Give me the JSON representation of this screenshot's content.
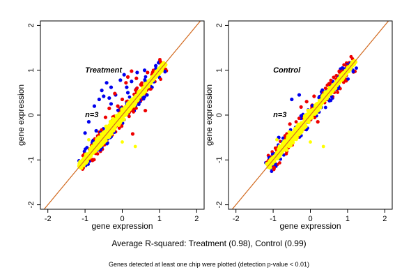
{
  "chart_data": [
    {
      "type": "scatter",
      "panel_label": "Treatment",
      "annotation": "n=3",
      "xlabel": "gene expression",
      "ylabel": "gene expression",
      "xlim": [
        -2.2,
        2.2
      ],
      "ylim": [
        -2.1,
        2.1
      ],
      "x_ticks": [
        -2,
        -1,
        0,
        1,
        2
      ],
      "y_ticks": [
        -2,
        -1,
        0,
        1,
        2
      ],
      "reference_line": "y = x",
      "colors": {
        "blue": "#0000ee",
        "red": "#ee0000",
        "yellow": "#ffff00",
        "line": "#d2691e"
      },
      "series": [
        {
          "color": "#0000ee",
          "points": [
            [
              -0.55,
              0.55
            ],
            [
              -0.42,
              0.72
            ],
            [
              -0.3,
              0.62
            ],
            [
              -0.18,
              0.45
            ],
            [
              -0.05,
              0.78
            ],
            [
              0.05,
              0.9
            ],
            [
              0.12,
              0.62
            ],
            [
              -0.5,
              0.42
            ],
            [
              -0.62,
              0.35
            ],
            [
              -0.75,
              0.2
            ],
            [
              -0.9,
              -0.15
            ],
            [
              -1.0,
              -0.4
            ],
            [
              -0.7,
              -0.35
            ],
            [
              -0.3,
              0.25
            ],
            [
              0.25,
              0.75
            ],
            [
              0.4,
              0.95
            ],
            [
              0.6,
              1.0
            ],
            [
              0.9,
              1.1
            ],
            [
              -0.35,
              0.38
            ],
            [
              0.15,
              0.5
            ]
          ]
        },
        {
          "color": "#ee0000",
          "points": [
            [
              -0.35,
              0.15
            ],
            [
              -0.2,
              0.48
            ],
            [
              0.15,
              0.85
            ],
            [
              0.25,
              0.98
            ],
            [
              0.38,
              0.82
            ],
            [
              0.5,
              0.68
            ],
            [
              0.68,
              0.95
            ],
            [
              -0.12,
              0.2
            ],
            [
              0.28,
              -0.42
            ],
            [
              0.62,
              0.1
            ],
            [
              -0.45,
              -0.05
            ],
            [
              0.0,
              0.35
            ],
            [
              0.8,
              0.9
            ],
            [
              0.45,
              0.4
            ],
            [
              0.1,
              0.72
            ]
          ]
        }
      ],
      "cloud": {
        "color": "#ffff00",
        "diagonal_from": -1.15,
        "diagonal_to": 1.15
      }
    },
    {
      "type": "scatter",
      "panel_label": "Control",
      "annotation": "n=3",
      "xlabel": "gene expression",
      "ylabel": "gene expression",
      "xlim": [
        -2.2,
        2.2
      ],
      "ylim": [
        -2.1,
        2.1
      ],
      "x_ticks": [
        -2,
        -1,
        0,
        1,
        2
      ],
      "y_ticks": [
        -2,
        -1,
        0,
        1,
        2
      ],
      "reference_line": "y = x",
      "colors": {
        "blue": "#0000ee",
        "red": "#ee0000",
        "yellow": "#ffff00",
        "line": "#d2691e"
      },
      "series": [
        {
          "color": "#0000ee",
          "points": [
            [
              -0.5,
              0.35
            ],
            [
              -0.3,
              0.45
            ],
            [
              -0.85,
              -0.5
            ],
            [
              -0.2,
              -0.05
            ],
            [
              0.6,
              0.75
            ],
            [
              0.3,
              0.52
            ],
            [
              -0.95,
              -0.9
            ]
          ]
        },
        {
          "color": "#ee0000",
          "points": [
            [
              -0.25,
              0.18
            ],
            [
              0.1,
              0.42
            ],
            [
              0.35,
              0.5
            ],
            [
              -0.55,
              -0.2
            ],
            [
              0.05,
              0.22
            ],
            [
              0.7,
              0.88
            ],
            [
              -0.8,
              -0.72
            ],
            [
              0.45,
              0.35
            ],
            [
              -0.1,
              0.3
            ],
            [
              0.2,
              -0.15
            ]
          ]
        }
      ],
      "cloud": {
        "color": "#ffff00",
        "diagonal_from": -1.15,
        "diagonal_to": 1.2
      }
    }
  ],
  "caption_main": "Average R-squared: Treatment (0.98), Control (0.99)",
  "caption_note": "Genes detected at least one chip were plotted (detection p-value < 0.01)"
}
